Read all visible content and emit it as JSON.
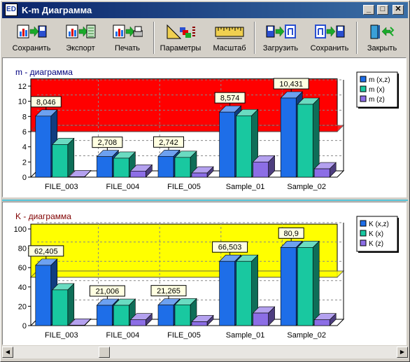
{
  "window": {
    "app_icon": "ED",
    "title": "K-m Диаграмма",
    "min_glyph": "_",
    "max_glyph": "□",
    "close_glyph": "✕"
  },
  "toolbar": {
    "save1": "Сохранить",
    "export": "Экспорт",
    "print": "Печать",
    "params": "Параметры",
    "scale": "Масштаб",
    "load": "Загрузить",
    "save2": "Сохранить",
    "close": "Закрыть"
  },
  "scroll": {
    "left_glyph": "◀",
    "right_glyph": "▶",
    "position": 0.23
  },
  "chart_data": [
    {
      "type": "bar",
      "title": "m - диаграмма",
      "title_color": "#000080",
      "categories": [
        "FILE_003",
        "FILE_004",
        "FILE_005",
        "Sample_01",
        "Sample_02"
      ],
      "series": [
        {
          "name": "m (x,z)",
          "color": "#1e6ee8",
          "values": [
            8.046,
            2.708,
            2.742,
            8.574,
            10.431
          ]
        },
        {
          "name": "m (x)",
          "color": "#19c8a0",
          "values": [
            4.3,
            2.5,
            2.6,
            8.1,
            9.6
          ]
        },
        {
          "name": "m (z)",
          "color": "#8c6ee6",
          "values": [
            0.05,
            0.8,
            0.55,
            2.0,
            1.1
          ]
        }
      ],
      "data_labels": [
        "8,046",
        "2,708",
        "2,742",
        "8,574",
        "10,431"
      ],
      "ylim": [
        0,
        12
      ],
      "yticks": [
        "0",
        "2",
        "4",
        "6",
        "8",
        "10",
        "12"
      ],
      "band": {
        "from": 6,
        "to": 13,
        "color": "#ff0000"
      },
      "grid": true,
      "legend": "top-right"
    },
    {
      "type": "bar",
      "title": "K - диаграмма",
      "title_color": "#800000",
      "categories": [
        "FILE_003",
        "FILE_004",
        "FILE_005",
        "Sample_01",
        "Sample_02"
      ],
      "series": [
        {
          "name": "K (x,z)",
          "color": "#1e6ee8",
          "values": [
            62.405,
            21.006,
            21.265,
            66.503,
            80.9
          ]
        },
        {
          "name": "K (x)",
          "color": "#19c8a0",
          "values": [
            37,
            21,
            21.5,
            66.5,
            80.9
          ]
        },
        {
          "name": "K (z)",
          "color": "#8c6ee6",
          "values": [
            0.5,
            6,
            4,
            13,
            6
          ]
        }
      ],
      "data_labels": [
        "62,405",
        "21,006",
        "21,265",
        "66,503",
        "80,9"
      ],
      "ylim": [
        0,
        100
      ],
      "yticks": [
        "0",
        "20",
        "40",
        "60",
        "80",
        "100"
      ],
      "band": {
        "from": 50,
        "to": 105,
        "color": "#ffff00"
      },
      "grid": true,
      "legend": "top-right"
    }
  ]
}
